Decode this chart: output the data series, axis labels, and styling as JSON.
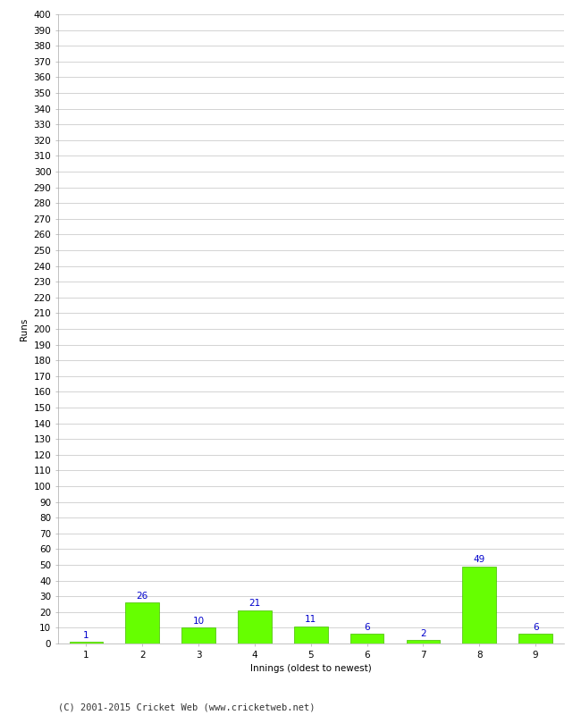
{
  "innings": [
    1,
    2,
    3,
    4,
    5,
    6,
    7,
    8,
    9
  ],
  "runs": [
    1,
    26,
    10,
    21,
    11,
    6,
    2,
    49,
    6
  ],
  "bar_color": "#66ff00",
  "bar_edge_color": "#44bb00",
  "label_color": "#0000cc",
  "xlabel": "Innings (oldest to newest)",
  "ylabel": "Runs",
  "ylim": [
    0,
    400
  ],
  "background_color": "#ffffff",
  "grid_color": "#cccccc",
  "footer_text": "(C) 2001-2015 Cricket Web (www.cricketweb.net)",
  "label_fontsize": 7.5,
  "axis_fontsize": 7.5,
  "ylabel_fontsize": 7.5,
  "footer_fontsize": 7.5
}
